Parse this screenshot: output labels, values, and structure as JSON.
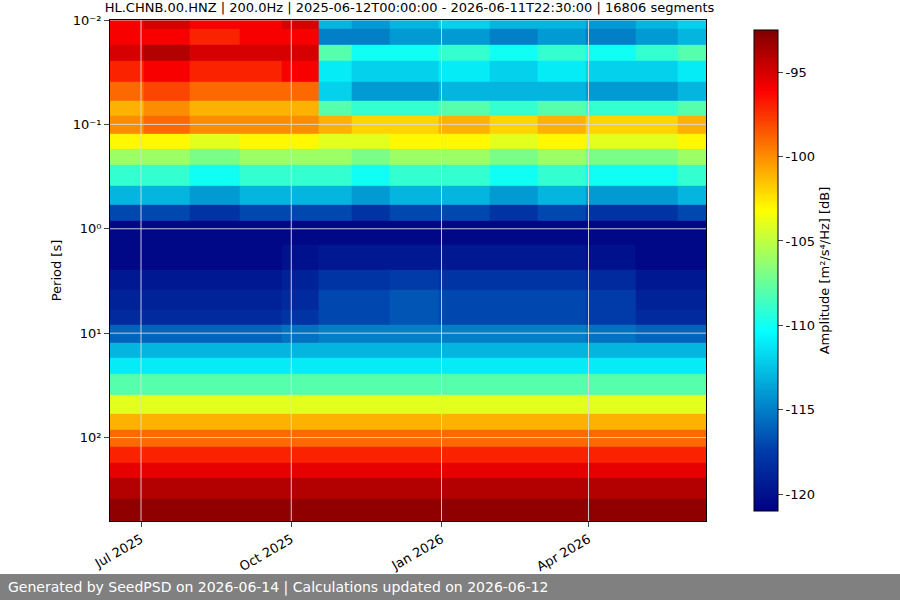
{
  "chart_data": {
    "type": "heatmap",
    "title": "HL.CHNB.00.HNZ | 200.0Hz | 2025-06-12T00:00:00 - 2026-06-11T22:30:00 | 16806 segments",
    "footer": "Generated by SeedPSD on 2026-06-14 | Calculations updated on 2026-06-12",
    "y_label": "Period [s]",
    "colorbar_label": "Amplitude [m²/s⁴/Hz] [dB]",
    "log": "y",
    "grid": true,
    "color": "jet",
    "x": [
      "2025-06-20",
      "2025-07-15",
      "2025-08-15",
      "2025-09-15",
      "2025-10-05",
      "2025-10-30",
      "2025-11-15",
      "2025-12-15",
      "2026-01-15",
      "2026-02-15",
      "2026-03-15",
      "2026-04-15",
      "2026-05-15",
      "2026-06-05"
    ],
    "y": [
      0.01,
      0.015,
      0.02,
      0.03,
      0.05,
      0.07,
      0.1,
      0.15,
      0.2,
      0.3,
      0.5,
      0.7,
      1,
      2,
      3,
      5,
      7,
      10,
      15,
      20,
      30,
      50,
      70,
      100,
      150,
      200,
      300,
      500,
      700
    ],
    "z": [
      [
        -96,
        -95,
        -96,
        -96,
        -95,
        -113,
        -114,
        -113,
        -112,
        -113,
        -113,
        -114,
        -113,
        -112
      ],
      [
        -96,
        -96,
        -97,
        -96,
        -96,
        -115,
        -115,
        -114,
        -114,
        -115,
        -114,
        -115,
        -114,
        -113
      ],
      [
        -95,
        -94,
        -95,
        -95,
        -95,
        -108,
        -110,
        -110,
        -109,
        -110,
        -109,
        -110,
        -109,
        -108
      ],
      [
        -97,
        -96,
        -97,
        -97,
        -96,
        -111,
        -112,
        -112,
        -111,
        -112,
        -111,
        -112,
        -112,
        -111
      ],
      [
        -99,
        -98,
        -99,
        -99,
        -99,
        -112,
        -114,
        -114,
        -113,
        -113,
        -113,
        -114,
        -114,
        -113
      ],
      [
        -101,
        -100,
        -101,
        -101,
        -101,
        -108,
        -109,
        -109,
        -108,
        -109,
        -108,
        -109,
        -109,
        -108
      ],
      [
        -100,
        -99,
        -100,
        -100,
        -100,
        -101,
        -102,
        -102,
        -101,
        -102,
        -101,
        -102,
        -102,
        -101
      ],
      [
        -103,
        -103,
        -104,
        -103,
        -103,
        -104,
        -104,
        -103,
        -103,
        -104,
        -103,
        -104,
        -104,
        -103
      ],
      [
        -106,
        -106,
        -107,
        -106,
        -106,
        -106,
        -107,
        -106,
        -106,
        -107,
        -106,
        -107,
        -107,
        -106
      ],
      [
        -109,
        -109,
        -110,
        -109,
        -109,
        -109,
        -110,
        -109,
        -109,
        -110,
        -109,
        -110,
        -110,
        -109
      ],
      [
        -113,
        -113,
        -114,
        -113,
        -113,
        -113,
        -114,
        -113,
        -113,
        -114,
        -113,
        -114,
        -114,
        -113
      ],
      [
        -117,
        -117,
        -118,
        -117,
        -117,
        -117,
        -118,
        -117,
        -117,
        -118,
        -117,
        -118,
        -118,
        -117
      ],
      [
        -120.5,
        -120.5,
        -120.5,
        -120.5,
        -120.5,
        -120.5,
        -120.5,
        -120.5,
        -120.5,
        -120.5,
        -120.5,
        -120.5,
        -120.5,
        -120.5
      ],
      [
        -120.5,
        -120.5,
        -120.5,
        -120.5,
        -120,
        -119.5,
        -119.5,
        -119.5,
        -119.5,
        -119.5,
        -119.5,
        -120,
        -120.5,
        -120.5
      ],
      [
        -119.5,
        -119.5,
        -119.5,
        -119.5,
        -119,
        -118,
        -118,
        -117.5,
        -118,
        -118,
        -118,
        -118.5,
        -119.5,
        -119.5
      ],
      [
        -119,
        -119,
        -119,
        -119,
        -118.5,
        -117,
        -117,
        -116.5,
        -117,
        -117,
        -117,
        -117.5,
        -119,
        -119
      ],
      [
        -118.5,
        -118.5,
        -118.5,
        -118.5,
        -118,
        -117,
        -117,
        -116.5,
        -117,
        -117,
        -117,
        -117.5,
        -118.5,
        -118.5
      ],
      [
        -116,
        -116,
        -116,
        -116,
        -115.5,
        -115,
        -115,
        -115,
        -115,
        -115,
        -115,
        -115.5,
        -116,
        -116
      ],
      [
        -113,
        -113,
        -113,
        -113,
        -113,
        -113,
        -113,
        -113,
        -113,
        -113,
        -113,
        -113,
        -113,
        -113
      ],
      [
        -111,
        -111,
        -111,
        -111,
        -111,
        -111,
        -111,
        -111,
        -111,
        -111,
        -111,
        -111,
        -111,
        -111
      ],
      [
        -108,
        -108,
        -108,
        -108,
        -108,
        -108,
        -108,
        -108,
        -108,
        -108,
        -108,
        -108,
        -108,
        -108
      ],
      [
        -104,
        -104,
        -104,
        -104,
        -104,
        -104,
        -104,
        -104,
        -104,
        -104,
        -104,
        -104,
        -104,
        -104
      ],
      [
        -101,
        -101,
        -101,
        -101,
        -101,
        -101,
        -101,
        -101,
        -101,
        -101,
        -101,
        -101,
        -101,
        -101
      ],
      [
        -99,
        -99,
        -99,
        -99,
        -99,
        -99,
        -99,
        -99,
        -99,
        -99,
        -99,
        -99,
        -99,
        -99
      ],
      [
        -97,
        -97,
        -97,
        -97,
        -97,
        -97,
        -97,
        -97,
        -97,
        -97,
        -97,
        -97,
        -97,
        -97
      ],
      [
        -95.5,
        -95.5,
        -95.5,
        -95.5,
        -95.5,
        -95.5,
        -95.5,
        -95.5,
        -95.5,
        -95.5,
        -95.5,
        -95.5,
        -95.5,
        -95.5
      ],
      [
        -94,
        -94,
        -94,
        -94,
        -94,
        -94,
        -94,
        -94,
        -94,
        -94,
        -94,
        -94,
        -94,
        -94
      ],
      [
        -93,
        -93,
        -93,
        -93,
        -93,
        -93,
        -93,
        -93,
        -93,
        -93,
        -93,
        -93,
        -93,
        -93
      ],
      [
        -93,
        -93,
        -93,
        -93,
        -93,
        -93,
        -93,
        -93,
        -93,
        -93,
        -93,
        -93,
        -93,
        -93
      ]
    ],
    "xlim": [
      "2025-06-12 00:00:00",
      "2026-06-11 22:30:00"
    ],
    "xticks": [
      {
        "value": "2025-07-01",
        "label": "Jul 2025"
      },
      {
        "value": "2025-10-01",
        "label": "Oct 2025"
      },
      {
        "value": "2026-01-01",
        "label": "Jan 2026"
      },
      {
        "value": "2026-04-01",
        "label": "Apr 2026"
      }
    ],
    "ylim": [
      630,
      0.01
    ],
    "yticks": [
      {
        "value": 0.01,
        "label": "10⁻²"
      },
      {
        "value": 0.1,
        "label": "10⁻¹"
      },
      {
        "value": 1,
        "label": "10⁰"
      },
      {
        "value": 10,
        "label": "10¹"
      },
      {
        "value": 100,
        "label": "10²"
      }
    ],
    "zlim": [
      -121,
      -92.5
    ],
    "zticks": [
      -120,
      -115,
      -110,
      -105,
      -100,
      -95
    ]
  }
}
